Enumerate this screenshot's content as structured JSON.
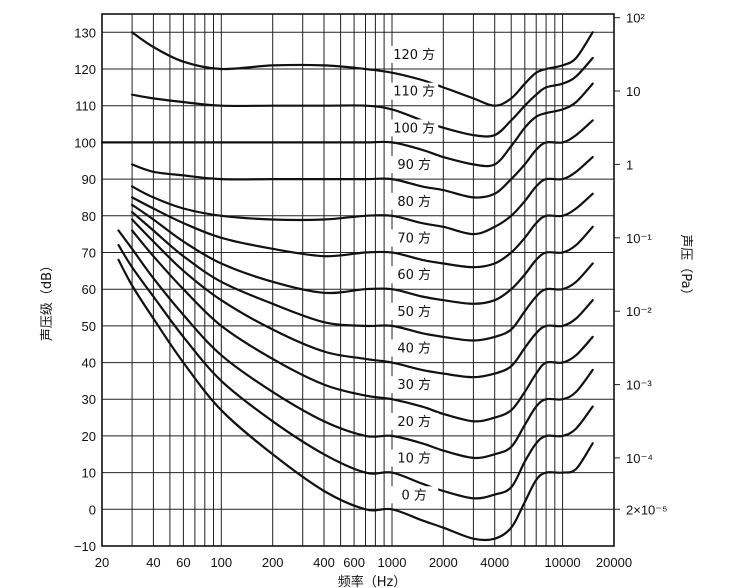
{
  "chart_data": {
    "type": "line",
    "title": "",
    "xlabel": "频率（Hz）",
    "ylabel": "声压级（dB）",
    "y2label": "声压（Pa）",
    "x_scale": "log",
    "xlim": [
      20,
      20000
    ],
    "ylim": [
      -10,
      135
    ],
    "grid": true,
    "x_ticks": [
      20,
      40,
      60,
      100,
      200,
      400,
      600,
      1000,
      2000,
      4000,
      10000,
      20000
    ],
    "x_tick_labels": [
      "20",
      "40",
      "60",
      "100",
      "200",
      "400",
      "600",
      "1000",
      "2000",
      "4000",
      "10000",
      "20000"
    ],
    "y_ticks": [
      -10,
      0,
      10,
      20,
      30,
      40,
      50,
      60,
      70,
      80,
      90,
      100,
      110,
      120,
      130
    ],
    "y_tick_labels": [
      "−10",
      "0",
      "10",
      "20",
      "30",
      "40",
      "50",
      "60",
      "70",
      "80",
      "90",
      "100",
      "110",
      "120",
      "130"
    ],
    "y2_ticks": [
      {
        "db": 134,
        "label": "10²"
      },
      {
        "db": 114,
        "label": "10"
      },
      {
        "db": 94,
        "label": "1"
      },
      {
        "db": 74,
        "label": "10⁻¹"
      },
      {
        "db": 54,
        "label": "10⁻²"
      },
      {
        "db": 34,
        "label": "10⁻³"
      },
      {
        "db": 14,
        "label": "10⁻⁴"
      },
      {
        "db": 0,
        "label": "2×10⁻⁵"
      }
    ],
    "series": [
      {
        "name": "0 方",
        "label_at": [
          1350,
          3
        ],
        "x": [
          25,
          30,
          40,
          60,
          100,
          200,
          400,
          700,
          1000,
          1500,
          2000,
          3000,
          4000,
          5000,
          6000,
          7000,
          8000,
          10000,
          12000,
          15000
        ],
        "y": [
          68,
          61,
          52,
          40,
          27,
          15,
          5,
          0,
          0,
          -3,
          -5,
          -8,
          -8,
          -5,
          2,
          8,
          10,
          10,
          11,
          18
        ]
      },
      {
        "name": "10 方",
        "label_at": [
          1350,
          13
        ],
        "x": [
          25,
          30,
          40,
          60,
          100,
          200,
          400,
          700,
          1000,
          1500,
          2000,
          3000,
          4000,
          5000,
          6000,
          7000,
          8000,
          10000,
          12000,
          15000
        ],
        "y": [
          72,
          66,
          58,
          47,
          35,
          24,
          15,
          10,
          10,
          7,
          5,
          3,
          4,
          6,
          13,
          18,
          20,
          20,
          22,
          28
        ]
      },
      {
        "name": "20 方",
        "label_at": [
          1350,
          23
        ],
        "x": [
          25,
          30,
          40,
          60,
          100,
          200,
          400,
          700,
          1000,
          1500,
          2000,
          3000,
          4000,
          5000,
          6000,
          7000,
          8000,
          10000,
          12000,
          15000
        ],
        "y": [
          76,
          71,
          63,
          53,
          42,
          32,
          24,
          20,
          20,
          18,
          16,
          14,
          15,
          17,
          23,
          28,
          30,
          30,
          32,
          38
        ]
      },
      {
        "name": "30 方",
        "label_at": [
          1350,
          33
        ],
        "x": [
          30,
          40,
          60,
          100,
          200,
          400,
          700,
          1000,
          1500,
          2000,
          3000,
          4000,
          5000,
          6000,
          7000,
          8000,
          10000,
          12000,
          15000
        ],
        "y": [
          76,
          69,
          60,
          50,
          41,
          34,
          31,
          30,
          28,
          26,
          24,
          25,
          27,
          32,
          37,
          40,
          40,
          42,
          47
        ]
      },
      {
        "name": "40 方",
        "label_at": [
          1350,
          43
        ],
        "x": [
          30,
          40,
          60,
          100,
          200,
          400,
          700,
          1000,
          1500,
          2000,
          3000,
          4000,
          5000,
          6000,
          7000,
          8000,
          10000,
          12000,
          15000
        ],
        "y": [
          79,
          73,
          65,
          57,
          49,
          43,
          41,
          40,
          38,
          37,
          36,
          37,
          39,
          44,
          48,
          50,
          50,
          52,
          57
        ]
      },
      {
        "name": "50 方",
        "label_at": [
          1350,
          53
        ],
        "x": [
          30,
          40,
          60,
          100,
          200,
          400,
          700,
          1000,
          1500,
          2000,
          3000,
          4000,
          5000,
          6000,
          7000,
          8000,
          10000,
          12000,
          15000
        ],
        "y": [
          81,
          76,
          69,
          62,
          56,
          51,
          50,
          50,
          48,
          47,
          46,
          47,
          49,
          54,
          58,
          60,
          60,
          62,
          67
        ]
      },
      {
        "name": "60 方",
        "label_at": [
          1350,
          63
        ],
        "x": [
          30,
          40,
          60,
          100,
          200,
          400,
          700,
          1000,
          1500,
          2000,
          3000,
          4000,
          5000,
          6000,
          7000,
          8000,
          10000,
          12000,
          15000
        ],
        "y": [
          83,
          79,
          73,
          67,
          62,
          59,
          60,
          60,
          58,
          57,
          56,
          57,
          60,
          64,
          68,
          70,
          70,
          72,
          77
        ]
      },
      {
        "name": "70 方",
        "label_at": [
          1350,
          73
        ],
        "x": [
          30,
          40,
          60,
          100,
          200,
          400,
          700,
          1000,
          1500,
          2000,
          3000,
          4000,
          5000,
          6000,
          7000,
          8000,
          10000,
          12000,
          15000
        ],
        "y": [
          85,
          82,
          78,
          74,
          71,
          69,
          70,
          70,
          68,
          67,
          66,
          67,
          70,
          74,
          78,
          80,
          80,
          82,
          86
        ]
      },
      {
        "name": "80 方",
        "label_at": [
          1350,
          83
        ],
        "x": [
          30,
          40,
          60,
          100,
          200,
          400,
          700,
          1000,
          1500,
          2000,
          3000,
          4000,
          5000,
          6000,
          7000,
          8000,
          10000,
          12000,
          15000
        ],
        "y": [
          88,
          85,
          82,
          80,
          79,
          79,
          80,
          80,
          78,
          77,
          75,
          77,
          80,
          84,
          88,
          90,
          90,
          92,
          96
        ]
      },
      {
        "name": "90 方",
        "label_at": [
          1350,
          93
        ],
        "x": [
          30,
          40,
          60,
          100,
          200,
          400,
          700,
          1000,
          1500,
          2000,
          3000,
          4000,
          5000,
          6000,
          7000,
          8000,
          10000,
          12000,
          15000
        ],
        "y": [
          94,
          92,
          91,
          90,
          90,
          90,
          90,
          90,
          88,
          87,
          85,
          86,
          90,
          94,
          98,
          100,
          100,
          102,
          106
        ]
      },
      {
        "name": "100 方",
        "label_at": [
          1350,
          103
        ],
        "x": [
          20,
          40,
          60,
          100,
          200,
          400,
          700,
          1000,
          1500,
          2000,
          3000,
          4000,
          5000,
          6000,
          7000,
          8000,
          10000,
          12000,
          15000
        ],
        "y": [
          100,
          100,
          100,
          100,
          100,
          100,
          100,
          100,
          98,
          96,
          94,
          94,
          99,
          104,
          107,
          108,
          109,
          111,
          116
        ]
      },
      {
        "name": "110 方",
        "label_at": [
          1350,
          113
        ],
        "x": [
          30,
          40,
          60,
          100,
          200,
          400,
          700,
          1000,
          1500,
          2000,
          3000,
          4000,
          5000,
          6000,
          7000,
          8000,
          10000,
          12000,
          15000
        ],
        "y": [
          113,
          112,
          111,
          110,
          110,
          110,
          110,
          109,
          106,
          104,
          102,
          102,
          106,
          110,
          113,
          115,
          116,
          118,
          123
        ]
      },
      {
        "name": "120 方",
        "label_at": [
          1350,
          123
        ],
        "x": [
          30,
          40,
          60,
          100,
          200,
          400,
          700,
          1000,
          1500,
          2000,
          3000,
          4000,
          5000,
          6000,
          7000,
          8000,
          10000,
          12000,
          15000
        ],
        "y": [
          130,
          126,
          122,
          120,
          121,
          121,
          120,
          119,
          117,
          115,
          112,
          110,
          112,
          116,
          119,
          120,
          121,
          123,
          130
        ]
      }
    ]
  }
}
